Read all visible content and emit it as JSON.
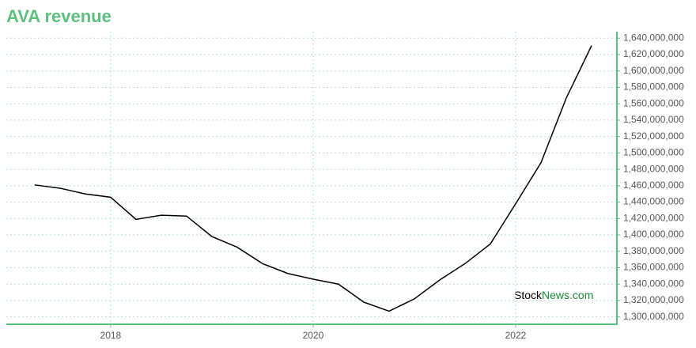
{
  "chart_data": {
    "type": "line",
    "title": "AVA revenue",
    "watermark": [
      "Stock",
      "News.com"
    ],
    "x": [
      2017.25,
      2017.5,
      2017.75,
      2018,
      2018.25,
      2018.5,
      2018.75,
      2019,
      2019.25,
      2019.5,
      2019.75,
      2020,
      2020.25,
      2020.5,
      2020.75,
      2021,
      2021.25,
      2021.5,
      2021.75,
      2022,
      2022.25,
      2022.5,
      2022.75
    ],
    "series": [
      {
        "name": "Revenue",
        "color": "#000000",
        "values": [
          1461000000,
          1457000000,
          1450000000,
          1446000000,
          1419000000,
          1424000000,
          1423000000,
          1398000000,
          1385000000,
          1365000000,
          1353000000,
          1346000000,
          1340000000,
          1318000000,
          1307000000,
          1322000000,
          1345000000,
          1365000000,
          1389000000,
          1438000000,
          1488000000,
          1567000000,
          1631000000
        ]
      }
    ],
    "xlim": [
      2016.97,
      2023
    ],
    "xticks": [
      2018,
      2020,
      2022
    ],
    "ylim": [
      1291000000,
      1648000000
    ],
    "yticks": [
      {
        "value": 1300000000,
        "label": "1,300,000,000"
      },
      {
        "value": 1320000000,
        "label": "1,320,000,000"
      },
      {
        "value": 1340000000,
        "label": "1,340,000,000"
      },
      {
        "value": 1360000000,
        "label": "1,360,000,000"
      },
      {
        "value": 1380000000,
        "label": "1,380,000,000"
      },
      {
        "value": 1400000000,
        "label": "1,400,000,000"
      },
      {
        "value": 1420000000,
        "label": "1,420,000,000"
      },
      {
        "value": 1440000000,
        "label": "1,440,000,000"
      },
      {
        "value": 1460000000,
        "label": "1,460,000,000"
      },
      {
        "value": 1480000000,
        "label": "1,480,000,000"
      },
      {
        "value": 1500000000,
        "label": "1,500,000,000"
      },
      {
        "value": 1520000000,
        "label": "1,520,000,000"
      },
      {
        "value": 1540000000,
        "label": "1,540,000,000"
      },
      {
        "value": 1560000000,
        "label": "1,560,000,000"
      },
      {
        "value": 1580000000,
        "label": "1,580,000,000"
      },
      {
        "value": 1600000000,
        "label": "1,600,000,000"
      },
      {
        "value": 1620000000,
        "label": "1,620,000,000"
      },
      {
        "value": 1640000000,
        "label": "1,640,000,000"
      }
    ],
    "grid": true,
    "axis_color": "#5cbf7e"
  }
}
